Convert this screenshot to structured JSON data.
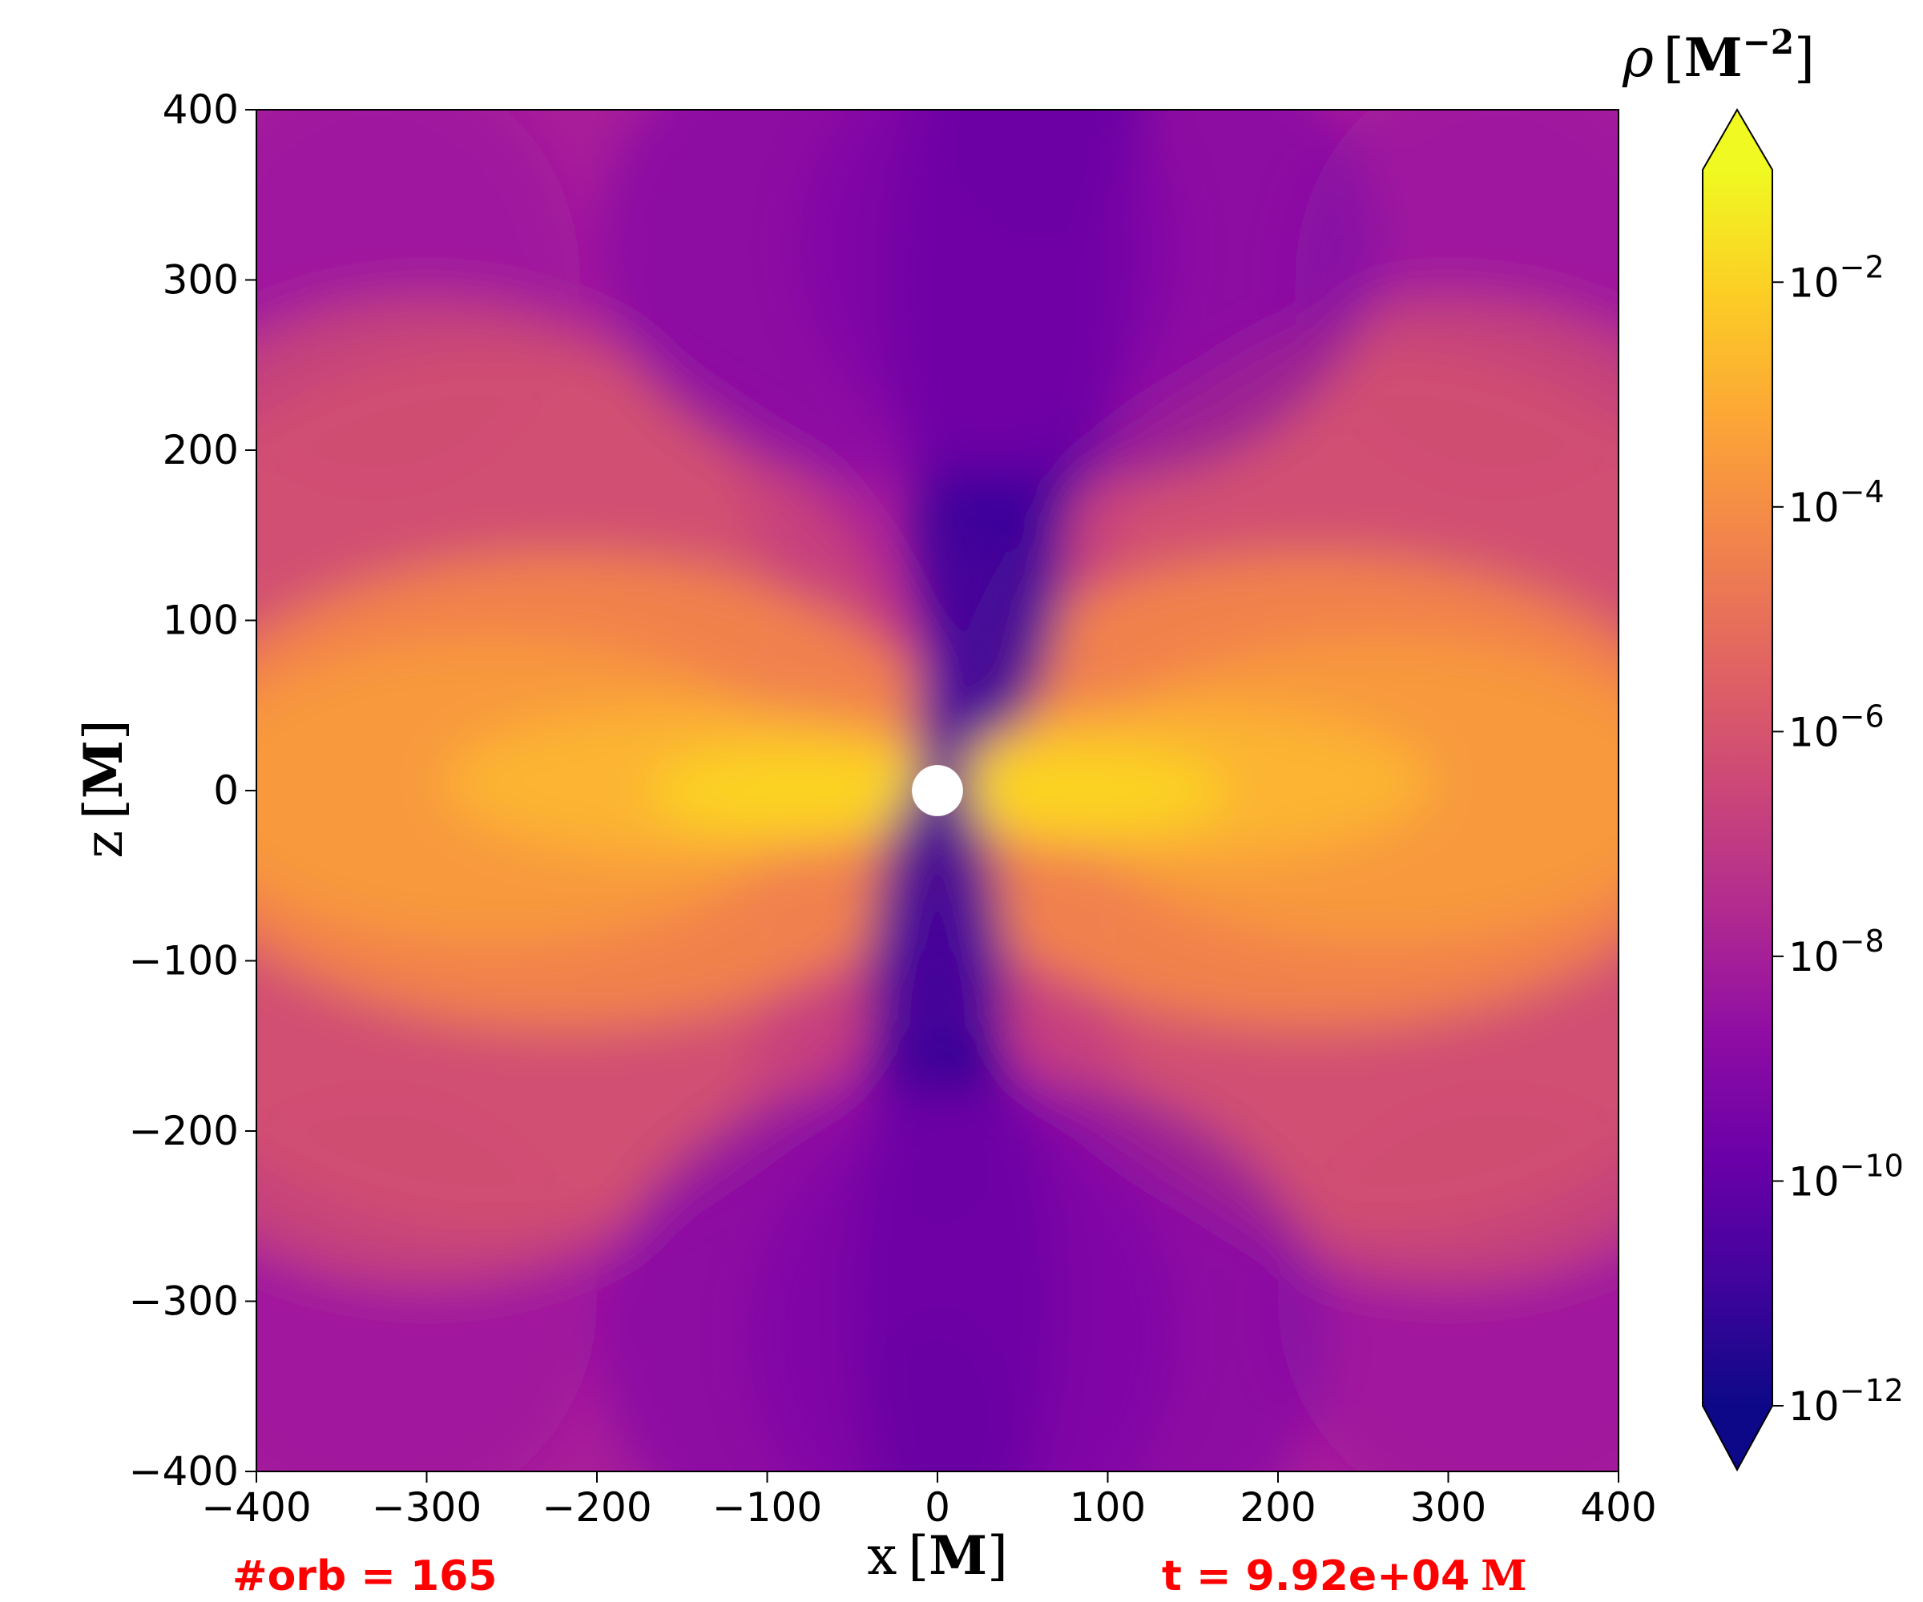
{
  "chart_data": {
    "type": "heatmap",
    "title": "",
    "quantity": "rho",
    "xlabel": {
      "var": "x",
      "unit": "M"
    },
    "ylabel": {
      "var": "z",
      "unit": "M"
    },
    "xlim": [
      -400,
      400
    ],
    "ylim": [
      -400,
      400
    ],
    "x_ticks": [
      -400,
      -300,
      -200,
      -100,
      0,
      100,
      200,
      300,
      400
    ],
    "y_ticks": [
      -400,
      -300,
      -200,
      -100,
      0,
      100,
      200,
      300,
      400
    ],
    "x_tick_labels": [
      "−400",
      "−300",
      "−200",
      "−100",
      "0",
      "100",
      "200",
      "300",
      "400"
    ],
    "y_tick_labels": [
      "−400",
      "−300",
      "−200",
      "−100",
      "0",
      "100",
      "200",
      "300",
      "400"
    ],
    "colormap": "plasma",
    "colorbar": {
      "label_symbol": "ρ",
      "label_unit": "M",
      "label_exponent": "−2",
      "scale": "log",
      "range_log10": [
        -12,
        -1
      ],
      "extend": "both",
      "ticks_log10": [
        -12,
        -10,
        -8,
        -6,
        -4,
        -2
      ],
      "tick_base": "10",
      "tick_exponents": [
        "−12",
        "−10",
        "−8",
        "−6",
        "−4",
        "−2"
      ]
    },
    "central_hole_radius": 15,
    "annotations": {
      "orbits": "#orb = 165",
      "time": "t = 9.92e+04",
      "time_unit": "M"
    },
    "colors": {
      "hole": "#ffffff",
      "annotation": "#ff0000"
    }
  }
}
